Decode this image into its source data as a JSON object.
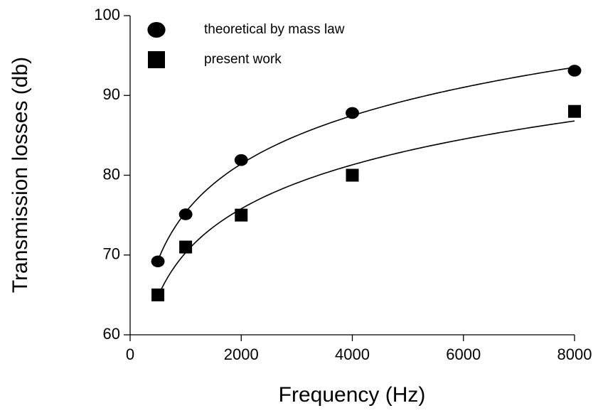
{
  "chart_data": {
    "type": "scatter",
    "xlabel": "Frequency (Hz)",
    "ylabel": "Transmission losses (db)",
    "series": [
      {
        "name": "theoretical by mass law",
        "color": "#000000",
        "marker": "circle",
        "trend": "log",
        "x": [
          500,
          1000,
          2000,
          4000,
          8000
        ],
        "values": [
          69.2,
          75.1,
          81.9,
          87.8,
          93.1
        ]
      },
      {
        "name": "present work",
        "color": "#000000",
        "marker": "square",
        "trend": "log",
        "x": [
          500,
          1000,
          2000,
          4000,
          8000
        ],
        "values": [
          65,
          71,
          75,
          80,
          88
        ]
      }
    ],
    "xlim": [
      0,
      8000
    ],
    "xticks": [
      0,
      2000,
      4000,
      6000,
      8000
    ],
    "ylim": [
      60,
      100
    ],
    "yticks": [
      60,
      70,
      80,
      90,
      100
    ],
    "grid": false,
    "legend": "upper-left"
  }
}
